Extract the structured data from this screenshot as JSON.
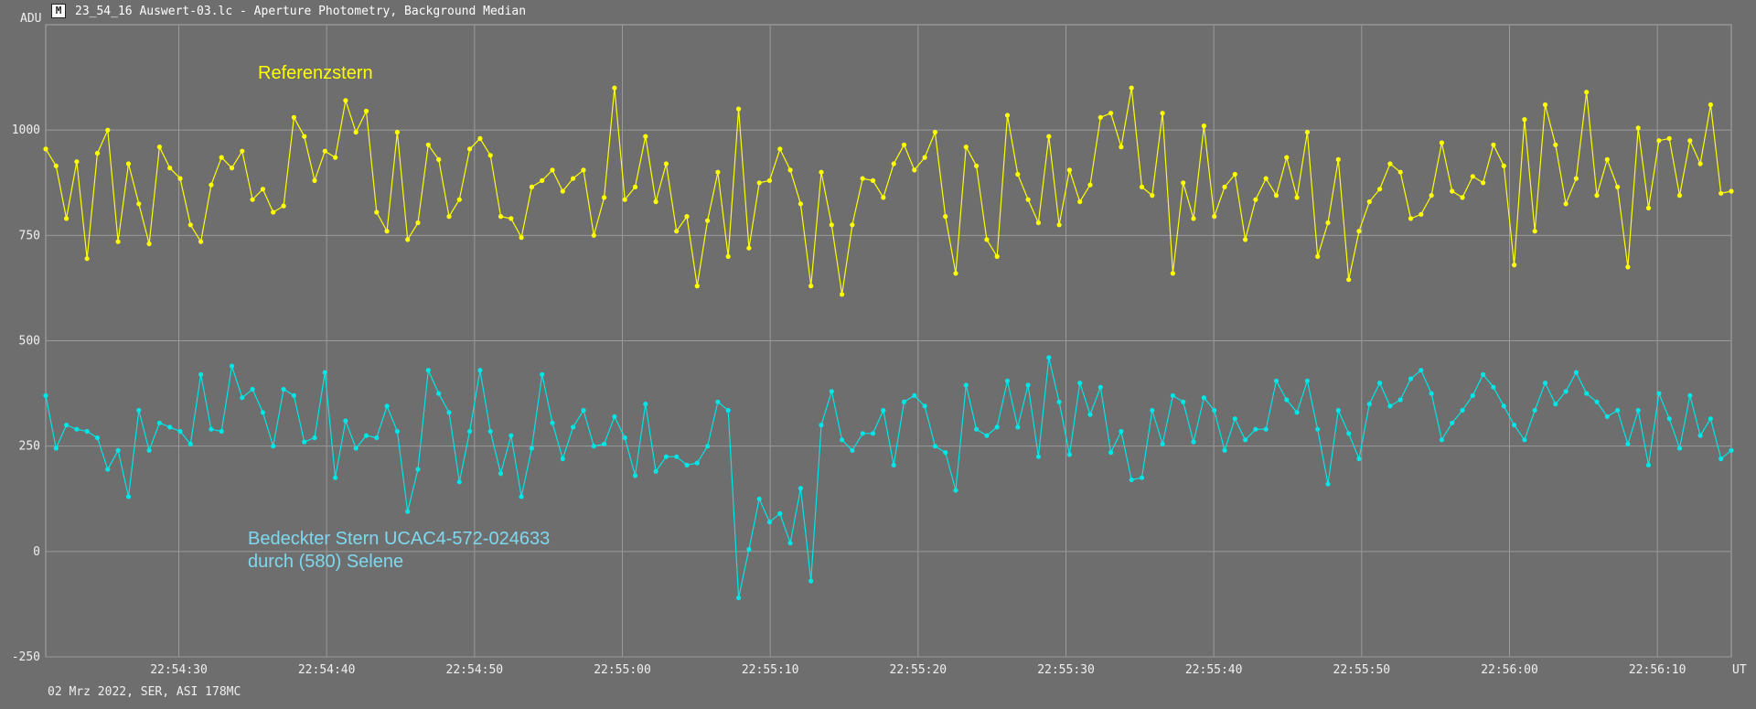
{
  "window": {
    "title": "23_54_16 Auswert-03.lc - Aperture Photometry, Background Median",
    "icon": "light-curve-app-icon"
  },
  "footer": "02 Mrz 2022, SER, ASI 178MC",
  "colors": {
    "background": "#6e6e6e",
    "grid": "#9a9a9a",
    "reference": "#ffff00",
    "target": "#00e5e5",
    "target_label": "#7fd8ee"
  },
  "chart_data": {
    "type": "line",
    "title": "",
    "ylabel": "ADU",
    "xlabel": "UT",
    "ylim": [
      -250,
      1250
    ],
    "yticks": [
      -250,
      0,
      250,
      500,
      750,
      1000
    ],
    "xlim_seconds": [
      21.0,
      135.0
    ],
    "xtick_labels": [
      "22:54:30",
      "22:54:40",
      "22:54:50",
      "22:55:00",
      "22:55:10",
      "22:55:20",
      "22:55:30",
      "22:55:40",
      "22:55:50",
      "22:56:00",
      "22:56:10"
    ],
    "xtick_seconds": [
      30,
      40,
      50,
      60,
      70,
      80,
      90,
      100,
      110,
      120,
      130
    ],
    "x_time_base": "22:54:00",
    "grid": true,
    "legend": "none",
    "annotations": [
      {
        "lines": [
          "Referenzstern"
        ],
        "series": "reference"
      },
      {
        "lines": [
          "Bedeckter Stern  UCAC4-572-024633",
          "durch (580) Selene"
        ],
        "series": "target"
      }
    ],
    "sample_interval_s": 0.7,
    "series": [
      {
        "id": "reference",
        "values": [
          955,
          915,
          790,
          925,
          695,
          945,
          1000,
          735,
          920,
          825,
          730,
          960,
          910,
          885,
          775,
          735,
          870,
          935,
          910,
          950,
          835,
          860,
          805,
          820,
          1030,
          985,
          880,
          950,
          935,
          1070,
          995,
          1045,
          805,
          760,
          995,
          740,
          780,
          965,
          930,
          795,
          835,
          955,
          980,
          940,
          795,
          790,
          745,
          865,
          880,
          905,
          855,
          885,
          905,
          750,
          840,
          1100,
          835,
          865,
          985,
          830,
          920,
          760,
          795,
          630,
          785,
          900,
          700,
          1050,
          720,
          875,
          880,
          955,
          905,
          825,
          630,
          900,
          775,
          610,
          775,
          885,
          880,
          840,
          920,
          965,
          905,
          935,
          995,
          795,
          660,
          960,
          915,
          740,
          700,
          1035,
          895,
          835,
          780,
          985,
          775,
          905,
          830,
          870,
          1030,
          1040,
          960,
          1100,
          865,
          845,
          1040,
          660,
          875,
          790,
          1010,
          795,
          865,
          895,
          740,
          835,
          885,
          845,
          935,
          840,
          995,
          700,
          780,
          930,
          645,
          760,
          830,
          860,
          920,
          900,
          790,
          800,
          845,
          970,
          855,
          840,
          890,
          875,
          965,
          915,
          680,
          1025,
          760,
          1060,
          965,
          825,
          885,
          1090,
          845,
          930,
          865,
          675,
          1005,
          815,
          975,
          980,
          845,
          975,
          920,
          1060,
          850,
          855
        ]
      },
      {
        "id": "target",
        "values": [
          370,
          245,
          300,
          290,
          285,
          270,
          195,
          240,
          130,
          335,
          240,
          305,
          295,
          285,
          255,
          420,
          290,
          285,
          440,
          365,
          385,
          330,
          250,
          385,
          370,
          260,
          270,
          425,
          175,
          310,
          245,
          275,
          270,
          345,
          285,
          95,
          195,
          430,
          375,
          330,
          165,
          285,
          430,
          285,
          185,
          275,
          130,
          245,
          420,
          305,
          220,
          295,
          335,
          250,
          255,
          320,
          270,
          180,
          350,
          190,
          225,
          225,
          205,
          210,
          250,
          355,
          335,
          -110,
          5,
          125,
          70,
          90,
          20,
          150,
          -70,
          300,
          380,
          265,
          240,
          280,
          280,
          335,
          205,
          355,
          370,
          345,
          250,
          235,
          145,
          395,
          290,
          275,
          295,
          405,
          295,
          395,
          225,
          460,
          355,
          230,
          400,
          325,
          390,
          235,
          285,
          170,
          175,
          335,
          255,
          370,
          355,
          260,
          365,
          335,
          240,
          315,
          265,
          290,
          290,
          405,
          360,
          330,
          405,
          290,
          160,
          335,
          280,
          220,
          350,
          400,
          345,
          360,
          410,
          430,
          375,
          265,
          305,
          335,
          370,
          420,
          390,
          345,
          300,
          265,
          335,
          400,
          350,
          380,
          425,
          375,
          355,
          320,
          335,
          255,
          335,
          205,
          375,
          315,
          245,
          370,
          275,
          315,
          220,
          240
        ]
      }
    ]
  }
}
